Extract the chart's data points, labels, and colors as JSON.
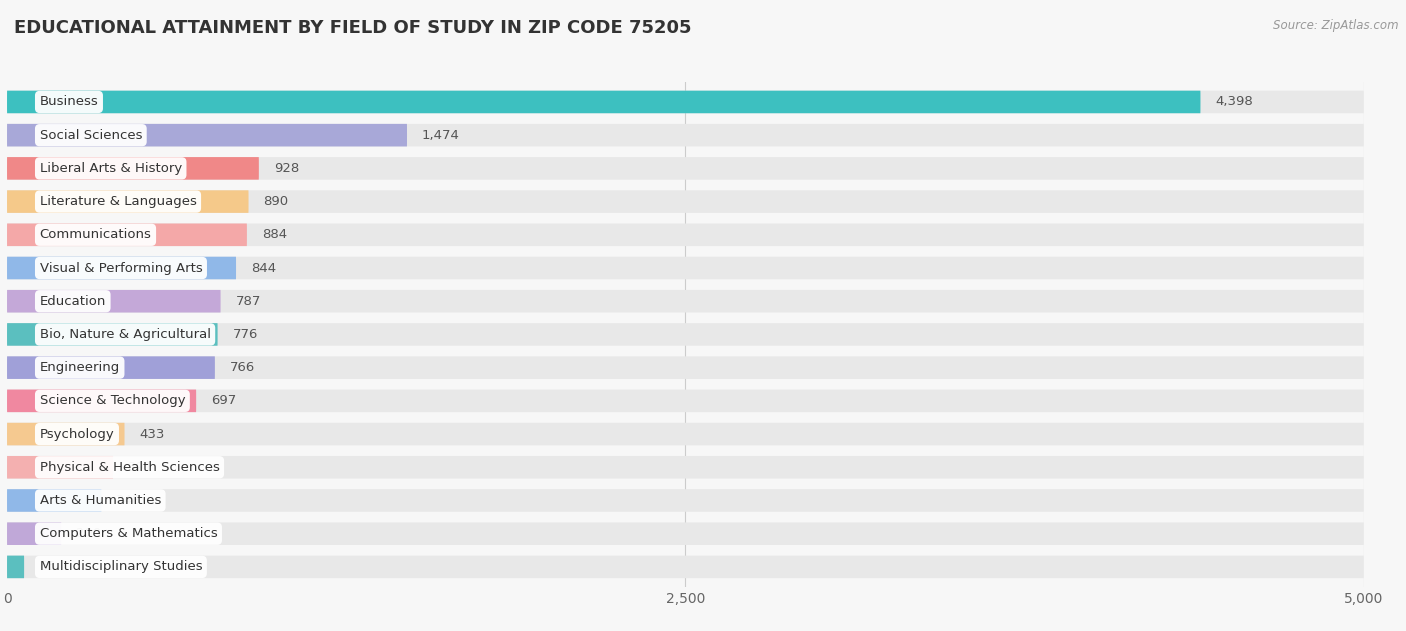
{
  "title": "EDUCATIONAL ATTAINMENT BY FIELD OF STUDY IN ZIP CODE 75205",
  "source": "Source: ZipAtlas.com",
  "categories": [
    "Business",
    "Social Sciences",
    "Liberal Arts & History",
    "Literature & Languages",
    "Communications",
    "Visual & Performing Arts",
    "Education",
    "Bio, Nature & Agricultural",
    "Engineering",
    "Science & Technology",
    "Psychology",
    "Physical & Health Sciences",
    "Arts & Humanities",
    "Computers & Mathematics",
    "Multidisciplinary Studies"
  ],
  "values": [
    4398,
    1474,
    928,
    890,
    884,
    844,
    787,
    776,
    766,
    697,
    433,
    391,
    348,
    200,
    63
  ],
  "bar_colors": [
    "#3dc0c0",
    "#a8a8d8",
    "#f08888",
    "#f5c98a",
    "#f4a8a8",
    "#90b8e8",
    "#c4a8d8",
    "#5bbfbf",
    "#a0a0d8",
    "#f088a0",
    "#f5c990",
    "#f4b0b0",
    "#90b8e8",
    "#c0a8d8",
    "#5bbfbf"
  ],
  "bg_color": "#f7f7f7",
  "bar_bg_color": "#e8e8e8",
  "xlim": [
    0,
    5000
  ],
  "xticks": [
    0,
    2500,
    5000
  ],
  "title_fontsize": 13,
  "label_fontsize": 9.5,
  "value_fontsize": 9.5
}
